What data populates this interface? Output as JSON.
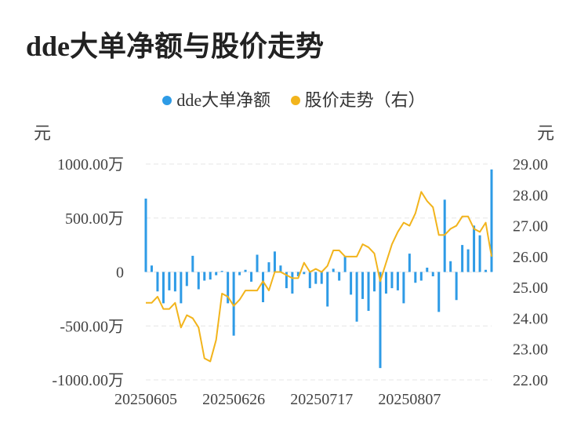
{
  "title": "dde大单净额与股价走势",
  "colors": {
    "bar": "#2e9be6",
    "line": "#f2b41c",
    "grid": "#e6e6e6"
  },
  "chart_data": {
    "type": "bar",
    "legend": [
      "dde大单净额",
      "股价走势（右）"
    ],
    "legend_position": "top-center",
    "left_unit": "元",
    "right_unit": "元",
    "y_left": {
      "min": -1000,
      "max": 1000,
      "ticks": [
        1000,
        500,
        0,
        -500,
        -1000
      ],
      "tick_labels": [
        "1000.00万",
        "500.00万",
        "0",
        "-500.00万",
        "-1000.00万"
      ]
    },
    "y_right": {
      "min": 22,
      "max": 29,
      "ticks": [
        29,
        28,
        27,
        26,
        25,
        24,
        23,
        22
      ],
      "tick_labels": [
        "29.00",
        "28.00",
        "27.00",
        "26.00",
        "25.00",
        "24.00",
        "23.00",
        "22.00"
      ]
    },
    "x_tick_labels": [
      {
        "index": 0,
        "label": "20250605"
      },
      {
        "index": 15,
        "label": "20250626"
      },
      {
        "index": 30,
        "label": "20250717"
      },
      {
        "index": 45,
        "label": "20250807"
      }
    ],
    "grid": true,
    "series": [
      {
        "name": "dde大单净额",
        "type": "bar",
        "axis": "left",
        "values": [
          680,
          60,
          -180,
          -290,
          -170,
          -180,
          -290,
          -130,
          150,
          -160,
          -80,
          -70,
          -30,
          10,
          -290,
          -590,
          -30,
          20,
          -90,
          160,
          -280,
          90,
          190,
          60,
          -150,
          -200,
          -40,
          -20,
          -150,
          -110,
          -110,
          -320,
          30,
          -80,
          150,
          -210,
          -460,
          -250,
          -360,
          -180,
          -890,
          -200,
          -150,
          -170,
          -290,
          170,
          -100,
          -80,
          40,
          -40,
          -370,
          670,
          100,
          -260,
          250,
          210,
          430,
          340,
          20,
          950
        ]
      },
      {
        "name": "股价走势（右）",
        "type": "line",
        "axis": "right",
        "values": [
          24.5,
          24.5,
          24.7,
          24.3,
          24.3,
          24.5,
          23.7,
          24.1,
          24.0,
          23.7,
          22.7,
          22.6,
          23.3,
          24.8,
          24.7,
          24.4,
          24.6,
          24.9,
          24.9,
          24.9,
          25.2,
          24.9,
          25.5,
          25.5,
          25.4,
          25.3,
          25.3,
          25.8,
          25.5,
          25.6,
          25.5,
          25.7,
          26.2,
          26.2,
          26.0,
          26.0,
          26.0,
          26.4,
          26.3,
          26.1,
          25.2,
          25.8,
          26.4,
          26.8,
          27.1,
          27.0,
          27.4,
          28.1,
          27.8,
          27.6,
          26.7,
          26.7,
          26.9,
          27.0,
          27.3,
          27.3,
          26.9,
          26.8,
          27.1,
          26.0
        ]
      }
    ]
  }
}
